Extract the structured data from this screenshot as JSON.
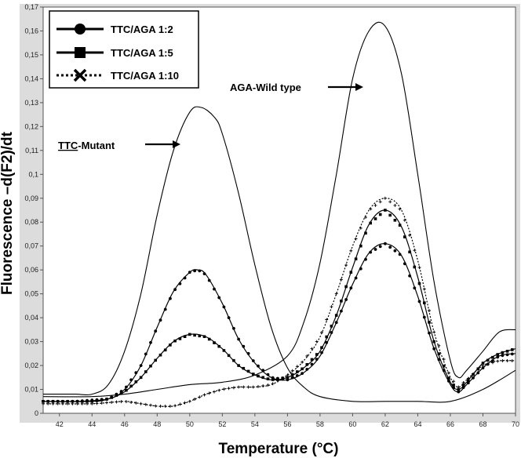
{
  "chart_data": {
    "type": "line",
    "title": "",
    "xlabel": "Temperature (°C)",
    "ylabel": "Fluorescence –d(F2)/dt",
    "xlim": [
      41,
      70
    ],
    "ylim": [
      0,
      0.17
    ],
    "x_ticks": [
      "42",
      "44",
      "46",
      "48",
      "50",
      "52",
      "54",
      "56",
      "58",
      "60",
      "62",
      "64",
      "66",
      "68",
      "70"
    ],
    "y_ticks": [
      "0",
      "0,01",
      "0,02",
      "0,03",
      "0,04",
      "0,05",
      "0,06",
      "0,07",
      "0,08",
      "0,09",
      "0,1",
      "0,11",
      "0,12",
      "0,13",
      "0,14",
      "0,15",
      "0,16",
      "0,17"
    ],
    "legend_position": "top-left",
    "legend": [
      {
        "label": "TTC/AGA 1:2",
        "marker": "circle",
        "line": "solid"
      },
      {
        "label": "TTC/AGA 1:5",
        "marker": "square",
        "line": "solid"
      },
      {
        "label": "TTC/AGA 1:10",
        "marker": "x",
        "line": "dotted"
      }
    ],
    "annotations": [
      {
        "prefix": "TTC",
        "text": "-Mutant",
        "underline_prefix": true,
        "target": [
          50.5,
          0.125
        ]
      },
      {
        "prefix": "",
        "text": "AGA-Wild type",
        "underline_prefix": false,
        "target": [
          61.5,
          0.155
        ]
      }
    ],
    "series": [
      {
        "label": "TTC-Mutant",
        "marker": "none",
        "line": "solid",
        "x": [
          41,
          42,
          43,
          44,
          45,
          46,
          47,
          48,
          49,
          50,
          50.7,
          51.5,
          52,
          53,
          54,
          55,
          56,
          57,
          58,
          60,
          62,
          64,
          66,
          68,
          70
        ],
        "y": [
          0.008,
          0.008,
          0.008,
          0.008,
          0.012,
          0.026,
          0.05,
          0.083,
          0.11,
          0.126,
          0.128,
          0.124,
          0.117,
          0.092,
          0.062,
          0.036,
          0.019,
          0.011,
          0.007,
          0.005,
          0.005,
          0.005,
          0.005,
          0.01,
          0.018
        ]
      },
      {
        "label": "AGA-Wild type",
        "marker": "none",
        "line": "solid",
        "x": [
          41,
          44,
          46,
          48,
          50,
          52,
          54,
          56,
          57,
          58,
          59,
          60,
          61,
          62,
          63,
          64,
          65,
          66,
          66.5,
          67,
          68,
          69,
          70
        ],
        "y": [
          0.007,
          0.007,
          0.008,
          0.01,
          0.012,
          0.013,
          0.016,
          0.024,
          0.038,
          0.063,
          0.1,
          0.14,
          0.16,
          0.162,
          0.142,
          0.1,
          0.055,
          0.022,
          0.015,
          0.018,
          0.026,
          0.034,
          0.035
        ]
      },
      {
        "label": "TTC/AGA 1:2",
        "marker": "circle",
        "line": "solid",
        "x": [
          41,
          43,
          45,
          46,
          47,
          48,
          49,
          50,
          50.5,
          51,
          52,
          53,
          54,
          55,
          56,
          57,
          58,
          59,
          60,
          61,
          62,
          63,
          64,
          65,
          66,
          66.5,
          67,
          68,
          69,
          70
        ],
        "y": [
          0.005,
          0.005,
          0.006,
          0.01,
          0.02,
          0.036,
          0.051,
          0.059,
          0.06,
          0.058,
          0.046,
          0.031,
          0.021,
          0.015,
          0.014,
          0.017,
          0.024,
          0.038,
          0.054,
          0.067,
          0.071,
          0.066,
          0.049,
          0.027,
          0.012,
          0.009,
          0.012,
          0.019,
          0.024,
          0.025
        ]
      },
      {
        "label": "TTC/AGA 1:5",
        "marker": "square",
        "line": "solid",
        "x": [
          41,
          44,
          45,
          46,
          47,
          48,
          49,
          50,
          51,
          52,
          53,
          54,
          55,
          56,
          57,
          58,
          59,
          60,
          61,
          62,
          63,
          64,
          65,
          66,
          66.5,
          67,
          68,
          69,
          70
        ],
        "y": [
          0.005,
          0.005,
          0.006,
          0.009,
          0.015,
          0.023,
          0.03,
          0.033,
          0.032,
          0.027,
          0.02,
          0.016,
          0.014,
          0.015,
          0.019,
          0.026,
          0.041,
          0.061,
          0.079,
          0.085,
          0.078,
          0.057,
          0.03,
          0.013,
          0.01,
          0.013,
          0.021,
          0.025,
          0.027
        ]
      },
      {
        "label": "TTC/AGA 1:10",
        "marker": "x",
        "line": "dotted",
        "x": [
          41,
          44,
          46,
          47,
          48,
          49,
          50,
          51,
          52,
          53,
          54,
          55,
          56,
          57,
          58,
          59,
          60,
          61,
          62,
          63,
          64,
          65,
          66,
          66.5,
          67,
          68,
          69,
          70
        ],
        "y": [
          0.004,
          0.004,
          0.005,
          0.004,
          0.003,
          0.003,
          0.005,
          0.008,
          0.01,
          0.011,
          0.011,
          0.012,
          0.016,
          0.022,
          0.032,
          0.05,
          0.07,
          0.085,
          0.09,
          0.085,
          0.064,
          0.034,
          0.015,
          0.011,
          0.014,
          0.02,
          0.022,
          0.022
        ]
      }
    ]
  }
}
